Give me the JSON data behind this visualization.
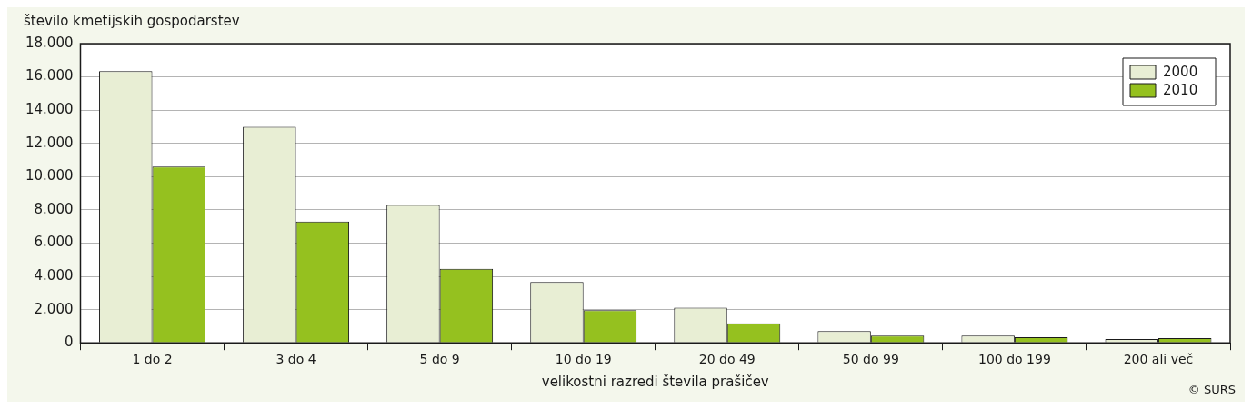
{
  "chart_data": {
    "type": "bar",
    "ylabel": "število kmetijskih gospodarstev",
    "xlabel": "velikostni razredi števila prašičev",
    "annotations": [
      "© SURS"
    ],
    "categories": [
      "1 do 2",
      "3 do 4",
      "5 do 9",
      "10 do 19",
      "20 do 49",
      "50 do 99",
      "100 do 199",
      "200 ali več"
    ],
    "series": [
      {
        "name": "2000",
        "color": "#e8eed4",
        "values": [
          16350,
          13000,
          8300,
          3660,
          2110,
          710,
          430,
          230
        ]
      },
      {
        "name": "2010",
        "color": "#95c11f",
        "values": [
          10600,
          7300,
          4450,
          1970,
          1170,
          430,
          340,
          290
        ]
      }
    ],
    "ylim": [
      0,
      18000
    ],
    "yticks": [
      0,
      {
        "value": 2000,
        "label": "2.000"
      },
      {
        "value": 4000,
        "label": "4.000"
      },
      {
        "value": 6000,
        "label": "6.000"
      },
      {
        "value": 8000,
        "label": "8.000"
      },
      {
        "value": 10000,
        "label": "10.000"
      },
      {
        "value": 12000,
        "label": "12.000"
      },
      {
        "value": 14000,
        "label": "14.000"
      },
      {
        "value": 16000,
        "label": "16.000"
      },
      {
        "value": 18000,
        "label": "18.000"
      }
    ],
    "grid": "y",
    "legend": "top right"
  }
}
